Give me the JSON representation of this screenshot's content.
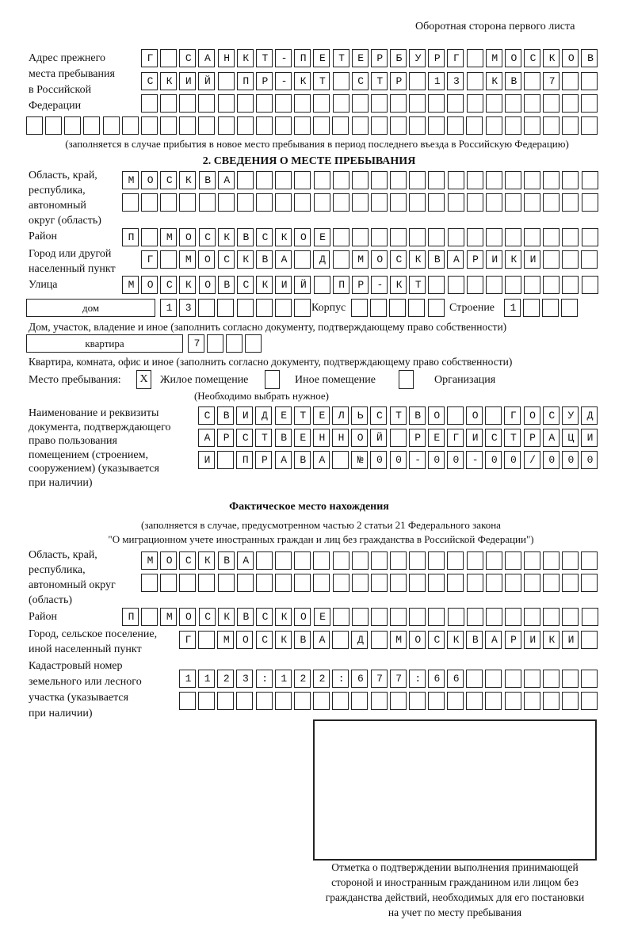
{
  "header": {
    "page_side": "Оборотная сторона первого листа"
  },
  "previous_address": {
    "label": "Адрес прежнего\nместа пребывания\nв Российской\nФедерации",
    "rows": [
      "Г САНКТ-ПЕТЕРБУРГ МОСКОВ",
      "СКИЙ ПР-КТ СТР 13 КВ 7  ",
      "                        ",
      "                              "
    ],
    "note": "(заполняется в случае прибытия в новое место пребывания в период последнего въезда в Российскую Федерацию)"
  },
  "section2": {
    "title": "2. СВЕДЕНИЯ О МЕСТЕ ПРЕБЫВАНИЯ",
    "region_label": "Область, край,\nреспублика,\nавтономный\nокруг (область)",
    "region_rows": [
      "МОСКВА                   ",
      "                         "
    ],
    "district_label": "Район",
    "district_row": "П МОСКВСКОЕ              ",
    "city_label": "Город или другой\nнаселенный пункт",
    "city_row": "Г МОСКВА Д МОСКВАРИКИ   ",
    "street_label": "Улица",
    "street_row": "МОСКОВСКИЙ ПР-КТ         ",
    "house_type": "дом",
    "house_row": "13      ",
    "building_label": "Корпус",
    "building_row": "     ",
    "structure_label": "Строение",
    "structure_row": "1   ",
    "house_note": "Дом, участок, владение и иное (заполнить согласно документу, подтверждающему право собственности)",
    "apartment_type": "квартира",
    "apartment_row": "7   ",
    "apartment_note": "Квартира, комната, офис и иное (заполнить согласно документу, подтверждающему право собственности)",
    "stay_place_label": "Место пребывания:",
    "stay_options": [
      {
        "label": "Жилое помещение",
        "mark": "X",
        "checked": true
      },
      {
        "label": "Иное помещение",
        "mark": "",
        "checked": false
      },
      {
        "label": "Организация",
        "mark": "",
        "checked": false
      }
    ],
    "stay_note": "(Необходимо выбрать нужное)",
    "document_label": "Наименование и реквизиты\nдокумента, подтверждающего\nправо пользования\nпомещением (строением,\nсооружением) (указывается\nпри наличии)",
    "document_rows": [
      "СВИДЕТЕЛЬСТВО О ГОСУД",
      "АРСТВЕННОЙ РЕГИСТРАЦИ",
      "И ПРАВА №00-00-00/000"
    ]
  },
  "actual_location": {
    "title": "Фактическое место нахождения",
    "subtitle": "(заполняется в случае, предусмотренном частью 2 статьи 21 Федерального закона\n\"О миграционном учете иностранных граждан и лиц без гражданства в Российской Федерации\")",
    "region_label": "Область, край,\nреспублика,\nавтономный округ\n(область)",
    "region_rows": [
      "МОСКВА                  ",
      "                        "
    ],
    "district_label": "Район",
    "district_row": "П МОСКВСКОЕ              ",
    "city_label": "Город, сельское поселение,\nиной населенный пункт",
    "city_row": "Г МОСКВА Д МОСКВАРИКИ ",
    "cadastre_label": "Кадастровый номер\nземельного или лесного\nучастка (указывается\nпри наличии)",
    "cadastre_rows": [
      "1123:122:677:66       ",
      "                      "
    ]
  },
  "confirmation": {
    "caption": "Отметка о подтверждении выполнения принимающей\nстороной и иностранным гражданином или лицом без\nгражданства действий, необходимых для его постановки\nна учет по месту пребывания"
  }
}
